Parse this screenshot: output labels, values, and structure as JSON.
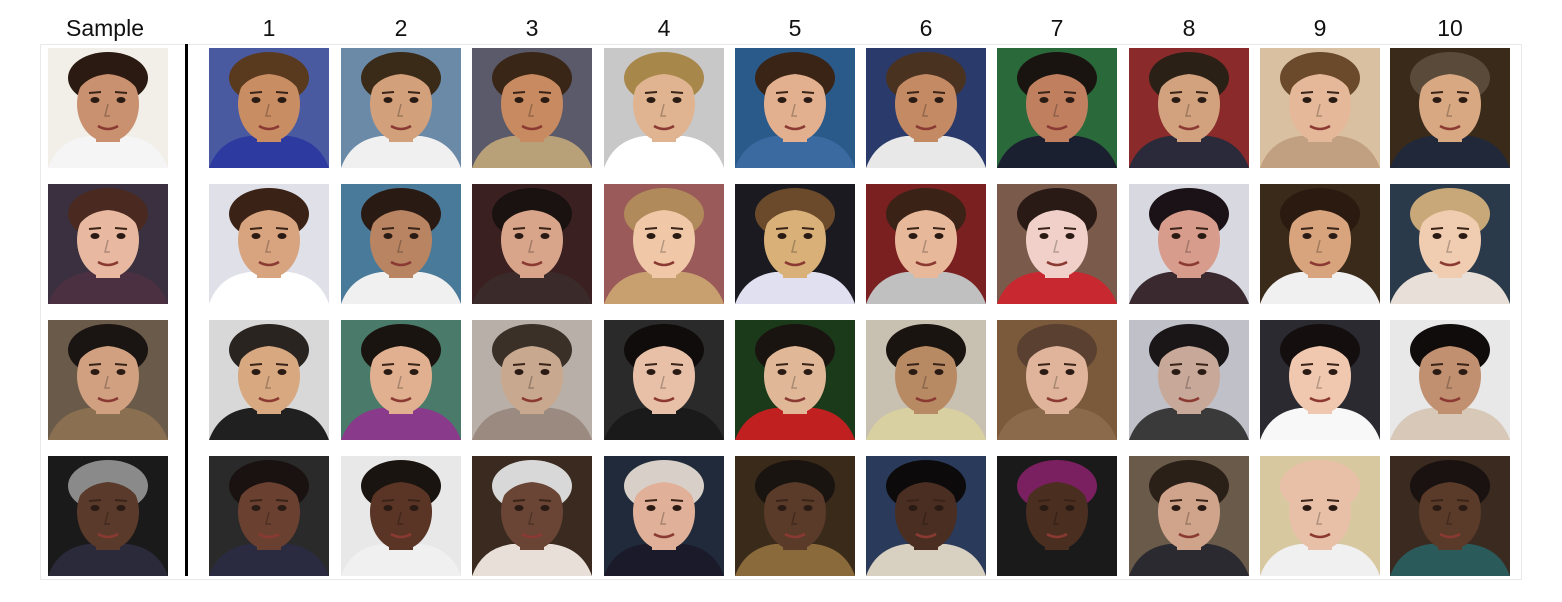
{
  "headers": {
    "sample": "Sample",
    "columns": [
      "1",
      "2",
      "3",
      "4",
      "5",
      "6",
      "7",
      "8",
      "9",
      "10"
    ]
  },
  "rows": [
    {
      "sample": {
        "bg": "#f2eee8",
        "skin": "#c9916f",
        "hair": "#2a1a12",
        "clothes": "#f5f5f5"
      },
      "matches": [
        {
          "bg": "#4a5aa0",
          "skin": "#c98d64",
          "hair": "#5a3a1f",
          "clothes": "#2d3aa0"
        },
        {
          "bg": "#6a8aa8",
          "skin": "#d2a07a",
          "hair": "#3a2a18",
          "clothes": "#f0f0f0"
        },
        {
          "bg": "#5a5a6a",
          "skin": "#c88a60",
          "hair": "#3a2616",
          "clothes": "#b8a078"
        },
        {
          "bg": "#c8c8c8",
          "skin": "#e0b490",
          "hair": "#a8884a",
          "clothes": "#ffffff"
        },
        {
          "bg": "#2a5a8a",
          "skin": "#e2b08e",
          "hair": "#3a2416",
          "clothes": "#3a6aa0"
        },
        {
          "bg": "#2a3a6a",
          "skin": "#c48a64",
          "hair": "#4a3220",
          "clothes": "#e8e8e8"
        },
        {
          "bg": "#2a6a3a",
          "skin": "#c08060",
          "hair": "#1a1410",
          "clothes": "#1a2030"
        },
        {
          "bg": "#8a2a2a",
          "skin": "#d2a27e",
          "hair": "#2a2016",
          "clothes": "#2a2a3a"
        },
        {
          "bg": "#d8c0a0",
          "skin": "#e4b898",
          "hair": "#6a4a2a",
          "clothes": "#c0a080"
        },
        {
          "bg": "#3a2a1a",
          "skin": "#d8a882",
          "hair": "#5a4a3a",
          "clothes": "#20283a"
        }
      ]
    },
    {
      "sample": {
        "bg": "#3a3040",
        "skin": "#e8b8a0",
        "hair": "#4a2a20",
        "clothes": "#4a3040"
      },
      "matches": [
        {
          "bg": "#e0e0e8",
          "skin": "#d8a480",
          "hair": "#3a2216",
          "clothes": "#ffffff"
        },
        {
          "bg": "#4a7a9a",
          "skin": "#b88462",
          "hair": "#2a1a14",
          "clothes": "#f0f0f0"
        },
        {
          "bg": "#3a2020",
          "skin": "#d8a48a",
          "hair": "#1a1210",
          "clothes": "#3a2a2a"
        },
        {
          "bg": "#9a5a5a",
          "skin": "#f0c8a8",
          "hair": "#b08a5a",
          "clothes": "#c8a070"
        },
        {
          "bg": "#1a1a20",
          "skin": "#d8b078",
          "hair": "#6a4a2a",
          "clothes": "#e0e0f0"
        },
        {
          "bg": "#7a2020",
          "skin": "#e8b89a",
          "hair": "#3a2216",
          "clothes": "#c0c0c0"
        },
        {
          "bg": "#7a5a4a",
          "skin": "#f0d0c8",
          "hair": "#2a1a16",
          "clothes": "#c82830"
        },
        {
          "bg": "#d8d8e0",
          "skin": "#d89c8c",
          "hair": "#1a1216",
          "clothes": "#3a2a30"
        },
        {
          "bg": "#3a2a1a",
          "skin": "#d8a47e",
          "hair": "#2a1a10",
          "clothes": "#f0f0f0"
        },
        {
          "bg": "#2a3a4a",
          "skin": "#f0ccb0",
          "hair": "#c8a878",
          "clothes": "#e8e0d8"
        }
      ]
    },
    {
      "sample": {
        "bg": "#6a5a4a",
        "skin": "#d0a080",
        "hair": "#1a1412",
        "clothes": "#8a7050"
      },
      "matches": [
        {
          "bg": "#d8d8d8",
          "skin": "#d8a880",
          "hair": "#2a2420",
          "clothes": "#202020"
        },
        {
          "bg": "#4a7a6a",
          "skin": "#e0b090",
          "hair": "#1a1410",
          "clothes": "#8a3a8a"
        },
        {
          "bg": "#b8b0a8",
          "skin": "#c8a88e",
          "hair": "#3a3028",
          "clothes": "#9a8a80"
        },
        {
          "bg": "#2a2a2a",
          "skin": "#e8c0a8",
          "hair": "#100c0c",
          "clothes": "#1a1a1a"
        },
        {
          "bg": "#1a3a1a",
          "skin": "#e0b898",
          "hair": "#1a1410",
          "clothes": "#c02020"
        },
        {
          "bg": "#c8c0b0",
          "skin": "#b88a64",
          "hair": "#1a1410",
          "clothes": "#d8d0a0"
        },
        {
          "bg": "#7a5a3a",
          "skin": "#e0b49a",
          "hair": "#5a4030",
          "clothes": "#8a6a4a"
        },
        {
          "bg": "#c0c0c8",
          "skin": "#c8a898",
          "hair": "#1a1618",
          "clothes": "#3a3a3a"
        },
        {
          "bg": "#2a2a30",
          "skin": "#f0c8b0",
          "hair": "#140e0e",
          "clothes": "#f8f8f8"
        },
        {
          "bg": "#e8e8e8",
          "skin": "#c09070",
          "hair": "#100c0c",
          "clothes": "#d8c8b8"
        }
      ]
    },
    {
      "sample": {
        "bg": "#1a1a1a",
        "skin": "#5a3a2a",
        "hair": "#8a8a8a",
        "clothes": "#2a2a3a"
      },
      "matches": [
        {
          "bg": "#2a2a2a",
          "skin": "#6a4030",
          "hair": "#1a1210",
          "clothes": "#2a2a40"
        },
        {
          "bg": "#e8e8e8",
          "skin": "#5a3424",
          "hair": "#1a1410",
          "clothes": "#f0f0f0"
        },
        {
          "bg": "#3a2a20",
          "skin": "#6a4434",
          "hair": "#d8d8d8",
          "clothes": "#e8e0d8"
        },
        {
          "bg": "#202a3a",
          "skin": "#e0b098",
          "hair": "#d8d0c8",
          "clothes": "#1a1a2a"
        },
        {
          "bg": "#3a2a1a",
          "skin": "#5a3a28",
          "hair": "#1a1410",
          "clothes": "#8a6a3a"
        },
        {
          "bg": "#2a3a5a",
          "skin": "#4a2e22",
          "hair": "#0c0a0a",
          "clothes": "#d8d0c0"
        },
        {
          "bg": "#1a1a1a",
          "skin": "#4a2e20",
          "hair": "#7a2060",
          "clothes": "#1a1a1a"
        },
        {
          "bg": "#6a5a4a",
          "skin": "#d0a48a",
          "hair": "#2a2018",
          "clothes": "#2a2a30"
        },
        {
          "bg": "#d8c8a0",
          "skin": "#e8c0a8",
          "hair": "#e8c0a8",
          "clothes": "#f0f0f0"
        },
        {
          "bg": "#3a2a20",
          "skin": "#5a3a28",
          "hair": "#1a1210",
          "clothes": "#2a5a5a"
        }
      ]
    }
  ]
}
